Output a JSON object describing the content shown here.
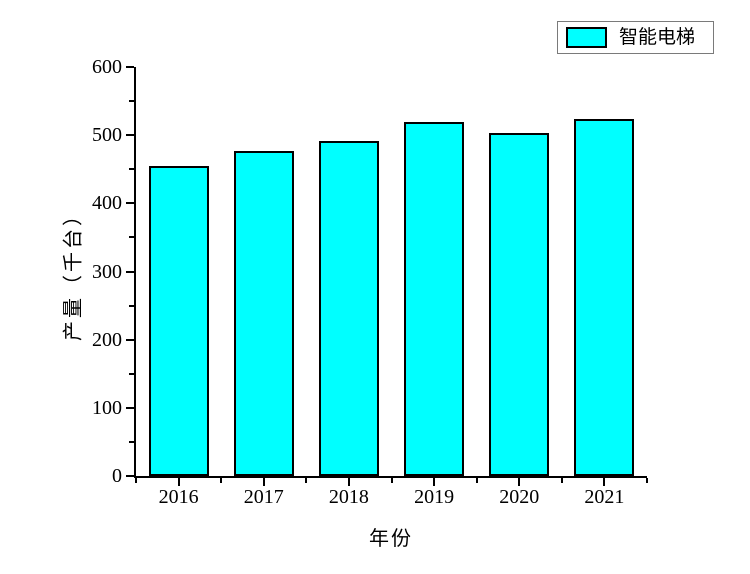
{
  "chart_data": {
    "type": "bar",
    "title": "",
    "categories": [
      "2016",
      "2017",
      "2018",
      "2019",
      "2020",
      "2021"
    ],
    "series": [
      {
        "name": "智能电梯",
        "values": [
          455,
          477,
          492,
          519,
          503,
          524
        ]
      }
    ],
    "xlabel": "年份",
    "ylabel": "产量（千台）",
    "ylim": [
      0,
      600
    ],
    "y_major_step": 100,
    "y_minor_step": 50,
    "y_tick_labels": [
      "0",
      "100",
      "200",
      "300",
      "400",
      "500",
      "600"
    ],
    "grid": false,
    "legend_position": "top-right-outside",
    "bar_color": "#00FFFF",
    "bar_edge_color": "#000000",
    "axis_color": "#000000",
    "background_color": "#FFFFFF"
  },
  "legend": {
    "items": [
      {
        "label": "智能电梯",
        "swatch_color": "#00FFFF"
      }
    ]
  }
}
